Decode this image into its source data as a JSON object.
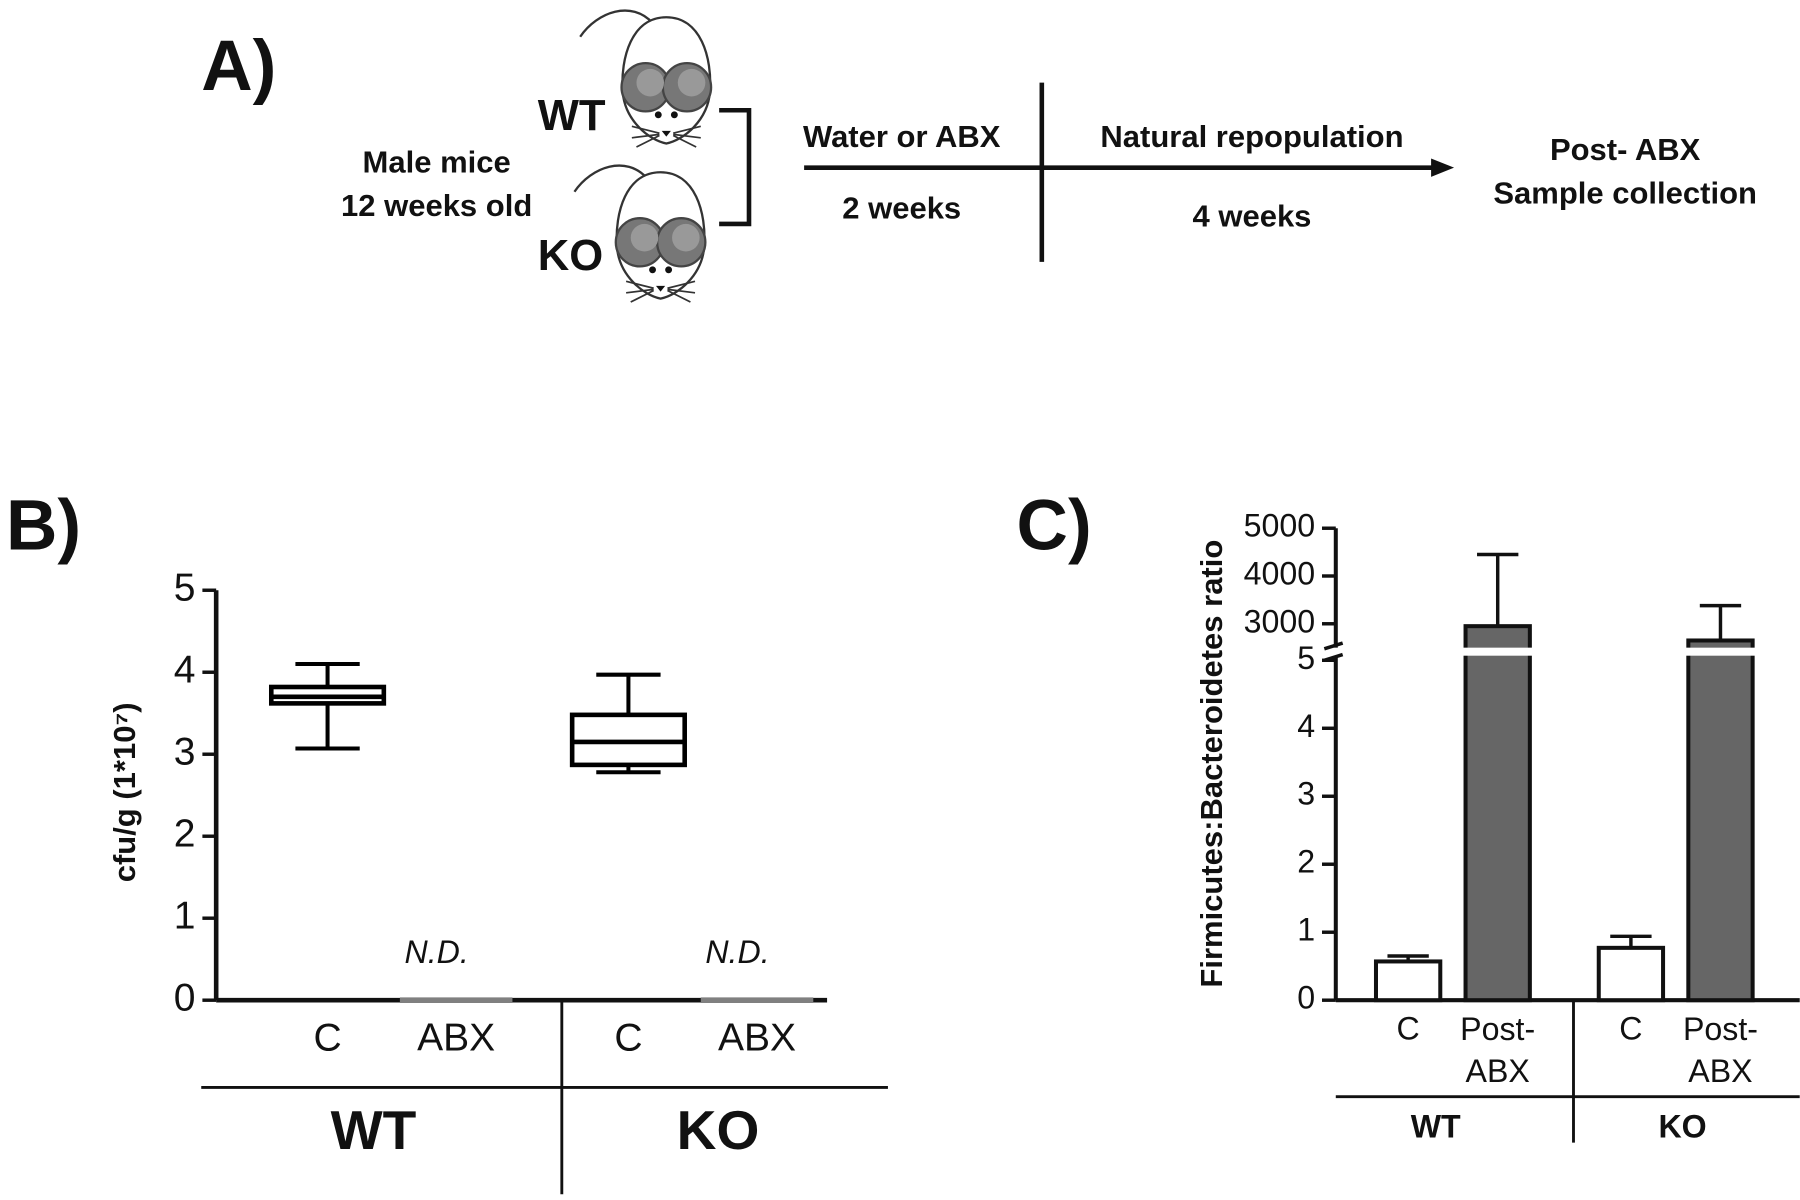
{
  "panel_a": {
    "label": "A)",
    "groups": [
      "WT",
      "KO"
    ],
    "subjects": [
      "Male mice",
      "12 weeks old"
    ],
    "phases": [
      {
        "label": "Water or ABX",
        "duration": "2 weeks"
      },
      {
        "label": "Natural repopulation",
        "duration": "4 weeks"
      }
    ],
    "endpoint": [
      "Post- ABX",
      "Sample collection"
    ]
  },
  "chart_data": [
    {
      "type": "box",
      "panel": "B)",
      "ylabel": "cfu/g (1*10⁷)",
      "categories": [
        "C",
        "ABX",
        "C",
        "ABX"
      ],
      "groups": [
        "WT",
        "KO"
      ],
      "boxes": [
        {
          "min": 3.07,
          "q1": 3.62,
          "median": 3.7,
          "q3": 3.82,
          "max": 4.1
        },
        {
          "min": 0,
          "q1": 0,
          "median": 0,
          "q3": 0,
          "max": 0
        },
        {
          "min": 2.78,
          "q1": 2.87,
          "median": 3.15,
          "q3": 3.48,
          "max": 3.97
        },
        {
          "min": 0,
          "q1": 0,
          "median": 0,
          "q3": 0,
          "max": 0
        }
      ],
      "value_labels": [
        null,
        "N.D.",
        null,
        "N.D."
      ],
      "colors": [
        "#000000",
        "#808080",
        "#000000",
        "#808080"
      ],
      "ylim": [
        0,
        5
      ],
      "yticks": [
        0,
        1,
        2,
        3,
        4,
        5
      ]
    },
    {
      "type": "bar",
      "panel": "C)",
      "ylabel": "Firmicutes:Bacteroidetes ratio",
      "categories": [
        "C",
        "Post-\nABX",
        "C",
        "Post-\nABX"
      ],
      "groups": [
        "WT",
        "KO"
      ],
      "values": [
        0.57,
        2950,
        0.77,
        2650
      ],
      "errors": [
        0.08,
        1500,
        0.17,
        730
      ],
      "colors": [
        "#ffffff",
        "#666666",
        "#ffffff",
        "#666666"
      ],
      "ylim": [
        0,
        5
      ],
      "yticks": [
        0,
        1,
        2,
        3,
        4,
        5
      ],
      "axis_break": {
        "ylim": [
          2500,
          5000
        ],
        "yticks": [
          3000,
          4000,
          5000
        ]
      }
    }
  ]
}
